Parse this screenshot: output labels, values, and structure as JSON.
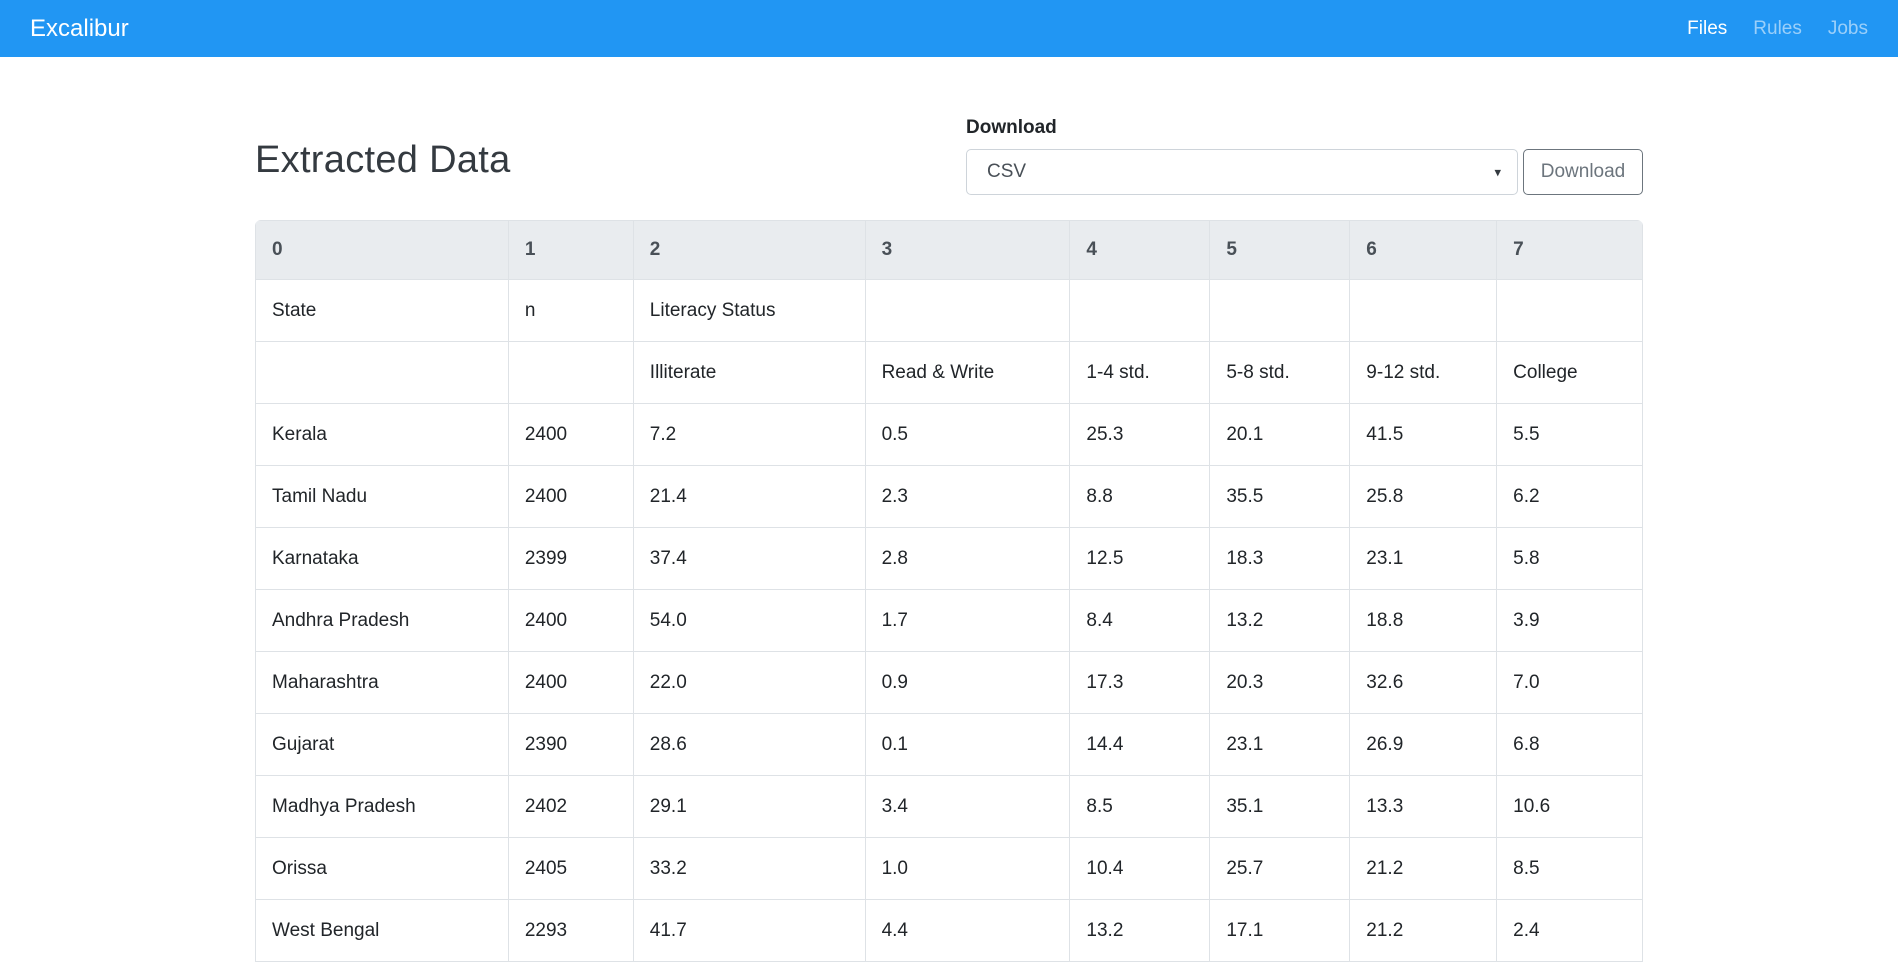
{
  "navbar": {
    "brand": "Excalibur",
    "links": [
      {
        "label": "Files",
        "active": true
      },
      {
        "label": "Rules",
        "active": false
      },
      {
        "label": "Jobs",
        "active": false
      }
    ]
  },
  "main": {
    "title": "Extracted Data",
    "download": {
      "label": "Download",
      "selected_format": "CSV",
      "button_label": "Download"
    }
  },
  "icons": {
    "caret_down": "▾"
  },
  "table": {
    "columns": [
      "0",
      "1",
      "2",
      "3",
      "4",
      "5",
      "6",
      "7"
    ],
    "rows": [
      [
        "State",
        "n",
        "Literacy Status",
        "",
        "",
        "",
        "",
        ""
      ],
      [
        "",
        "",
        "Illiterate",
        "Read & Write",
        "1-4 std.",
        "5-8 std.",
        "9-12 std.",
        "College"
      ],
      [
        "Kerala",
        "2400",
        "7.2",
        "0.5",
        "25.3",
        "20.1",
        "41.5",
        "5.5"
      ],
      [
        "Tamil Nadu",
        "2400",
        "21.4",
        "2.3",
        "8.8",
        "35.5",
        "25.8",
        "6.2"
      ],
      [
        "Karnataka",
        "2399",
        "37.4",
        "2.8",
        "12.5",
        "18.3",
        "23.1",
        "5.8"
      ],
      [
        "Andhra Pradesh",
        "2400",
        "54.0",
        "1.7",
        "8.4",
        "13.2",
        "18.8",
        "3.9"
      ],
      [
        "Maharashtra",
        "2400",
        "22.0",
        "0.9",
        "17.3",
        "20.3",
        "32.6",
        "7.0"
      ],
      [
        "Gujarat",
        "2390",
        "28.6",
        "0.1",
        "14.4",
        "23.1",
        "26.9",
        "6.8"
      ],
      [
        "Madhya Pradesh",
        "2402",
        "29.1",
        "3.4",
        "8.5",
        "35.1",
        "13.3",
        "10.6"
      ],
      [
        "Orissa",
        "2405",
        "33.2",
        "1.0",
        "10.4",
        "25.7",
        "21.2",
        "8.5"
      ],
      [
        "West Bengal",
        "2293",
        "41.7",
        "4.4",
        "13.2",
        "17.1",
        "21.2",
        "2.4"
      ]
    ]
  },
  "colors": {
    "navbar_bg": "#2196f3",
    "table_header_bg": "#e9ecef",
    "table_border": "#dee2e6",
    "button_outline": "#6c757d"
  }
}
